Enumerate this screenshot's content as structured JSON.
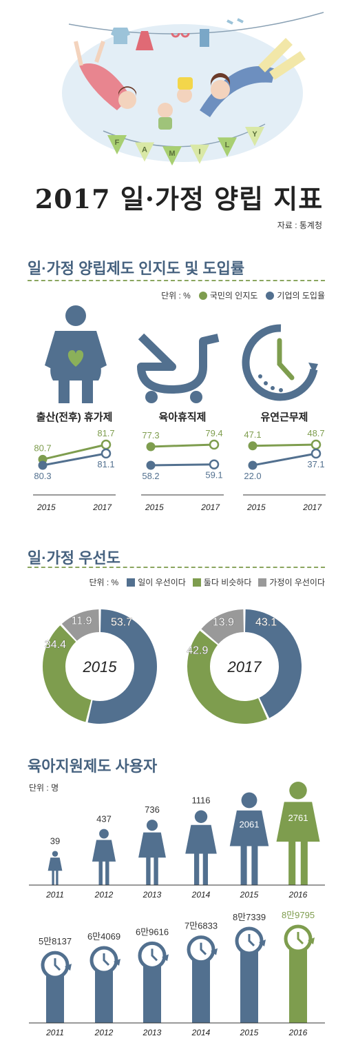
{
  "header": {
    "title": "2017 일·가정 양립 지표",
    "source": "자료 : 통계청",
    "banner_letters": [
      "F",
      "A",
      "M",
      "I",
      "L",
      "Y"
    ]
  },
  "colors": {
    "blue": "#52708f",
    "green": "#7e9d4e",
    "gray": "#999999",
    "navy": "#46627f"
  },
  "sections": {
    "awareness": {
      "title": "일·가정 양립제도 인지도 및 도입률",
      "unit": "단위 : %",
      "legend": [
        "국민의 인지도",
        "기업의 도입율"
      ],
      "icons": [
        "pregnant-woman-icon",
        "stroller-icon",
        "clock-icon"
      ]
    },
    "priority": {
      "title": "일·가정 우선도",
      "unit": "단위 : %",
      "legend": [
        "일이 우선이다",
        "둘다 비슷하다",
        "가정이 우선이다"
      ]
    },
    "childcare": {
      "title": "육아지원제도 사용자",
      "unit": "단위 : 명"
    }
  },
  "chart_data": [
    {
      "type": "line",
      "title": "출산(전후) 휴가제",
      "x": [
        "2015",
        "2017"
      ],
      "series": [
        {
          "name": "국민의 인지도",
          "values": [
            80.7,
            81.7
          ],
          "labels": [
            "80.7",
            "81.7"
          ]
        },
        {
          "name": "기업의 도입율",
          "values": [
            80.3,
            81.1
          ],
          "labels": [
            "80.3",
            "81.1"
          ]
        }
      ]
    },
    {
      "type": "line",
      "title": "육아휴직제",
      "x": [
        "2015",
        "2017"
      ],
      "series": [
        {
          "name": "국민의 인지도",
          "values": [
            77.3,
            79.4
          ],
          "labels": [
            "77.3",
            "79.4"
          ]
        },
        {
          "name": "기업의 도입율",
          "values": [
            58.2,
            59.1
          ],
          "labels": [
            "58.2",
            "59.1"
          ]
        }
      ]
    },
    {
      "type": "line",
      "title": "유연근무제",
      "x": [
        "2015",
        "2017"
      ],
      "series": [
        {
          "name": "국민의 인지도",
          "values": [
            47.1,
            48.7
          ],
          "labels": [
            "47.1",
            "48.7"
          ]
        },
        {
          "name": "기업의 도입율",
          "values": [
            22.0,
            37.1
          ],
          "labels": [
            "22.0",
            "37.1"
          ]
        }
      ]
    },
    {
      "type": "pie",
      "title": "2015",
      "categories": [
        "일이 우선이다",
        "둘다 비슷하다",
        "가정이 우선이다"
      ],
      "values": [
        53.7,
        34.4,
        11.9
      ]
    },
    {
      "type": "pie",
      "title": "2017",
      "categories": [
        "일이 우선이다",
        "둘다 비슷하다",
        "가정이 우선이다"
      ],
      "values": [
        43.1,
        42.9,
        13.9
      ]
    },
    {
      "type": "bar",
      "categories": [
        "2011",
        "2012",
        "2013",
        "2014",
        "2015",
        "2016"
      ],
      "values": [
        39,
        437,
        736,
        1116,
        2061,
        2761
      ],
      "labels": [
        "39",
        "437",
        "736",
        "1116",
        "2061",
        "2761"
      ]
    },
    {
      "type": "bar",
      "categories": [
        "2011",
        "2012",
        "2013",
        "2014",
        "2015",
        "2016"
      ],
      "values": [
        58137,
        64069,
        69616,
        76833,
        87339,
        89795
      ],
      "labels": [
        "5만8137",
        "6만4069",
        "6만9616",
        "7만6833",
        "8만7339",
        "8만9795"
      ]
    }
  ]
}
